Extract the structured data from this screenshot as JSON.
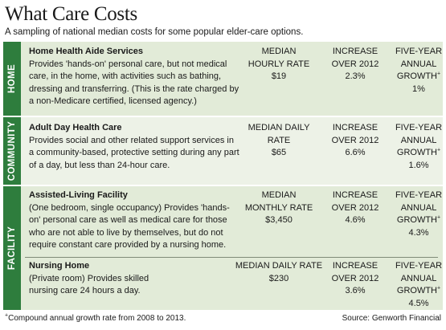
{
  "header": {
    "title": "What Care Costs",
    "subtitle": "A sampling of national median costs for some popular elder-care options."
  },
  "sections": [
    {
      "label": "HOME",
      "items": [
        {
          "name": "Home Health Aide Services",
          "description": "Provides 'hands-on' personal care, but not medical care, in the home, with activities such as bathing, dressing and transferring. (This is the rate charged by a non-Medicare certified, licensed agency.)",
          "rate_label": "MEDIAN HOURLY RATE",
          "rate_value": "$19",
          "increase_label": "INCREASE OVER 2012",
          "increase_value": "2.3%",
          "growth_label": "FIVE-YEAR ANNUAL GROWTH",
          "growth_mark": "+",
          "growth_value": "1%"
        }
      ]
    },
    {
      "label": "COMMUNITY",
      "items": [
        {
          "name": "Adult Day Health Care",
          "description": "Provides social and other related support services in a community-based, protective setting during any part of a day, but less than 24-hour care.",
          "rate_label": "MEDIAN DAILY RATE",
          "rate_value": "$65",
          "increase_label": "INCREASE OVER 2012",
          "increase_value": "6.6%",
          "growth_label": "FIVE-YEAR ANNUAL GROWTH",
          "growth_mark": "+",
          "growth_value": "1.6%"
        }
      ]
    },
    {
      "label": "FACILITY",
      "items": [
        {
          "name": "Assisted-Living Facility",
          "description": "(One bedroom, single occupancy) Provides 'hands-on' personal care as well as medical care for those who are not able to live by themselves, but do not require constant care provided by a nursing home.",
          "rate_label": "MEDIAN MONTHLY RATE",
          "rate_value": "$3,450",
          "increase_label": "INCREASE OVER 2012",
          "increase_value": "4.6%",
          "growth_label": "FIVE-YEAR ANNUAL GROWTH",
          "growth_mark": "+",
          "growth_value": "4.3%"
        },
        {
          "name": "Nursing Home",
          "description": "(Private room) Provides skilled nursing care 24 hours a day.",
          "rate_label": "MEDIAN DAILY RATE",
          "rate_value": "$230",
          "increase_label": "INCREASE OVER 2012",
          "increase_value": "3.6%",
          "growth_label": "FIVE-YEAR ANNUAL GROWTH",
          "growth_mark": "+",
          "growth_value": "4.5%"
        }
      ]
    }
  ],
  "footer": {
    "footnote_mark": "+",
    "footnote": "Compound annual growth rate from 2008 to 2013.",
    "source": "Source: Genworth Financial"
  },
  "colors": {
    "label_bar": "#2e7d3d",
    "section_bg": "#e2ebd8",
    "section_bg_alt": "#edf2e7"
  }
}
